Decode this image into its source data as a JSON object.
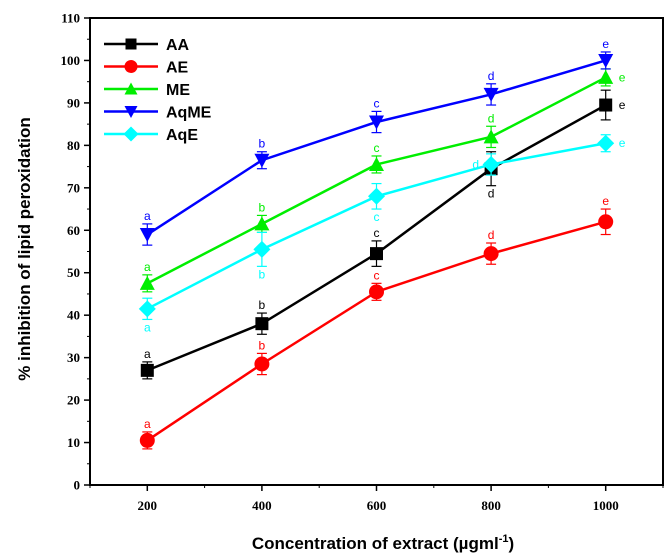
{
  "chart_data": {
    "type": "line",
    "xlabel": "Concentration of extract (µgml",
    "xlabel_sup": "-1",
    "xlabel_close": ")",
    "ylabel": "% inhibition of lipid peroxidation",
    "x": [
      200,
      400,
      600,
      800,
      1000
    ],
    "xlim": [
      100,
      1100
    ],
    "ylim": [
      0,
      110
    ],
    "xticks": [
      200,
      400,
      600,
      800,
      1000
    ],
    "yticks": [
      0,
      10,
      20,
      30,
      40,
      50,
      60,
      70,
      80,
      90,
      100,
      110
    ],
    "legend_position": "top-left",
    "grid": false,
    "series": [
      {
        "name": "AA",
        "color": "#000000",
        "marker": "square",
        "values": [
          27,
          38,
          54.5,
          74.5,
          89.5
        ],
        "errors": [
          2,
          2.5,
          3,
          4,
          3.5
        ],
        "labels": [
          "a",
          "b",
          "c",
          "d",
          "e"
        ],
        "label_pos": [
          "above",
          "above",
          "above",
          "below",
          "right"
        ]
      },
      {
        "name": "AE",
        "color": "#ff0000",
        "marker": "circle",
        "values": [
          10.5,
          28.5,
          45.5,
          54.5,
          62
        ],
        "errors": [
          2,
          2.5,
          2,
          2.5,
          3
        ],
        "labels": [
          "a",
          "b",
          "c",
          "d",
          "e"
        ],
        "label_pos": [
          "above",
          "above",
          "above",
          "above",
          "above"
        ]
      },
      {
        "name": "ME",
        "color": "#00ee00",
        "marker": "triangle-up",
        "values": [
          47.5,
          61.5,
          75.5,
          82,
          96
        ],
        "errors": [
          2,
          2,
          2,
          2.5,
          2
        ],
        "labels": [
          "a",
          "b",
          "c",
          "d",
          "e"
        ],
        "label_pos": [
          "above",
          "above",
          "above",
          "above",
          "right"
        ]
      },
      {
        "name": "AqME",
        "color": "#0000ff",
        "marker": "triangle-down",
        "values": [
          59,
          76.5,
          85.5,
          92,
          100
        ],
        "errors": [
          2.5,
          2,
          2.5,
          2.5,
          2
        ],
        "labels": [
          "a",
          "b",
          "c",
          "d",
          "e"
        ],
        "label_pos": [
          "above",
          "above",
          "above",
          "above",
          "above"
        ]
      },
      {
        "name": "AqE",
        "color": "#00ffff",
        "marker": "diamond",
        "values": [
          41.5,
          55.5,
          68,
          75.5,
          80.5
        ],
        "errors": [
          2.5,
          4,
          3,
          2.5,
          2
        ],
        "labels": [
          "a",
          "b",
          "c",
          "d",
          "e"
        ],
        "label_pos": [
          "below",
          "below",
          "below",
          "left",
          "right"
        ]
      }
    ]
  }
}
